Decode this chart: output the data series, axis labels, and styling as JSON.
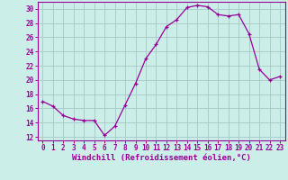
{
  "x": [
    0,
    1,
    2,
    3,
    4,
    5,
    6,
    7,
    8,
    9,
    10,
    11,
    12,
    13,
    14,
    15,
    16,
    17,
    18,
    19,
    20,
    21,
    22,
    23
  ],
  "y": [
    17.0,
    16.3,
    15.0,
    14.5,
    14.3,
    14.3,
    12.2,
    13.5,
    16.5,
    19.5,
    23.0,
    25.0,
    27.5,
    28.5,
    30.2,
    30.5,
    30.3,
    29.2,
    29.0,
    29.2,
    26.5,
    21.5,
    20.0,
    20.5
  ],
  "line_color": "#990099",
  "marker": "+",
  "marker_size": 3,
  "bg_color": "#cceee8",
  "grid_color": "#aacccc",
  "xlabel": "Windchill (Refroidissement éolien,°C)",
  "ylim": [
    11.5,
    31.0
  ],
  "yticks": [
    12,
    14,
    16,
    18,
    20,
    22,
    24,
    26,
    28,
    30
  ],
  "xlim": [
    -0.5,
    23.5
  ],
  "xticks": [
    0,
    1,
    2,
    3,
    4,
    5,
    6,
    7,
    8,
    9,
    10,
    11,
    12,
    13,
    14,
    15,
    16,
    17,
    18,
    19,
    20,
    21,
    22,
    23
  ],
  "tick_color": "#990099",
  "label_color": "#990099",
  "axis_color": "#990099",
  "font_size_tick": 5.5,
  "font_size_xlabel": 6.5
}
